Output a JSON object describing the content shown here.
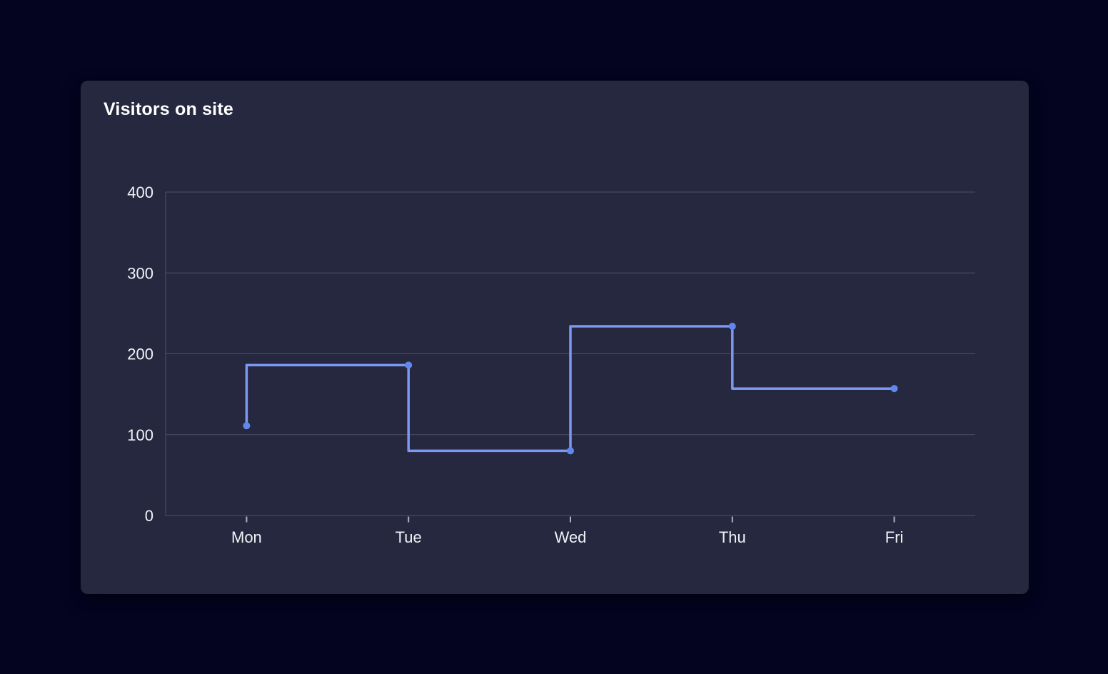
{
  "page": {
    "background": "#040320"
  },
  "card": {
    "title": "Visitors on site",
    "background": "#262840"
  },
  "chart_data": {
    "type": "line",
    "step": "before",
    "title": "Visitors on site",
    "categories": [
      "Mon",
      "Tue",
      "Wed",
      "Thu",
      "Fri"
    ],
    "series": [
      {
        "name": "Visitors on site",
        "values": [
          111,
          186,
          80,
          234,
          157
        ]
      }
    ],
    "xlabel": "",
    "ylabel": "",
    "ylim": [
      0,
      400
    ],
    "yticks": [
      0,
      100,
      200,
      300,
      400
    ],
    "grid": "horizontal",
    "legend_position": "none",
    "show_points": true,
    "point_radius": 5,
    "line_width": 3.5,
    "colors": {
      "line": "#7b99f3",
      "point": "#6187ee",
      "grid": "#4d4f66",
      "axis": "#4d4f66",
      "tick_mark": "#aeb0bf",
      "tick_label": "#f1f2f6",
      "title": "#ffffff"
    }
  }
}
